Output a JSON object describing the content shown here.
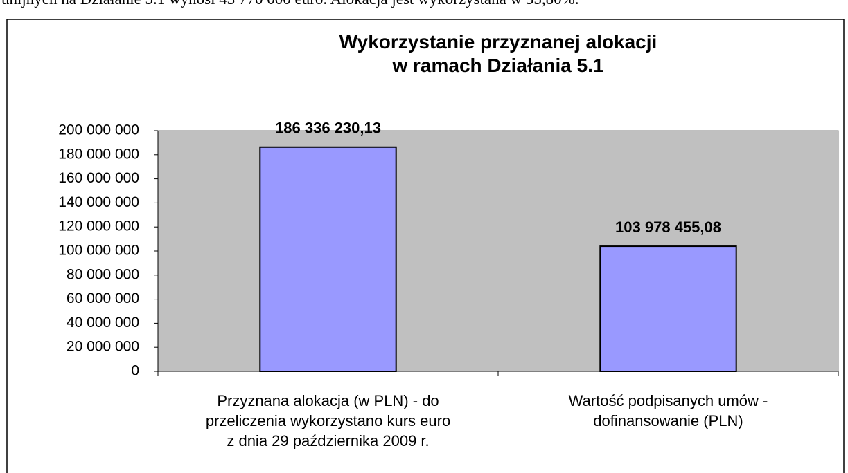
{
  "document_text": "unijnych na Działanie 5.1 wynosi 43 770 000 euro. Alokacja jest wykorzystana w 55,80%.",
  "chart_data": {
    "type": "bar",
    "title": "Wykorzystanie przyznanej alokacji\nw ramach Działania 5.1",
    "categories": [
      "Przyznana alokacja (w PLN) - do\nprzeliczenia wykorzystano kurs euro\nz dnia 29 października 2009 r.",
      "Wartość podpisanych umów -\ndofinansowanie (PLN)"
    ],
    "values": [
      186336230.13,
      103978455.08
    ],
    "value_labels": [
      "186 336 230,13",
      "103 978 455,08"
    ],
    "color": "#9999ff",
    "ylim": [
      0,
      200000000
    ],
    "yticks": [
      0,
      {
        "value": 20000000,
        "label": "20 000 000"
      },
      {
        "value": 40000000,
        "label": "40 000 000"
      },
      {
        "value": 60000000,
        "label": "60 000 000"
      },
      {
        "value": 80000000,
        "label": "80 000 000"
      },
      {
        "value": 100000000,
        "label": "100 000 000"
      },
      {
        "value": 120000000,
        "label": "120 000 000"
      },
      {
        "value": 140000000,
        "label": "140 000 000"
      },
      {
        "value": 160000000,
        "label": "160 000 000"
      },
      {
        "value": 180000000,
        "label": "180 000 000"
      },
      {
        "value": 200000000,
        "label": "200 000 000"
      }
    ],
    "grid": false
  }
}
